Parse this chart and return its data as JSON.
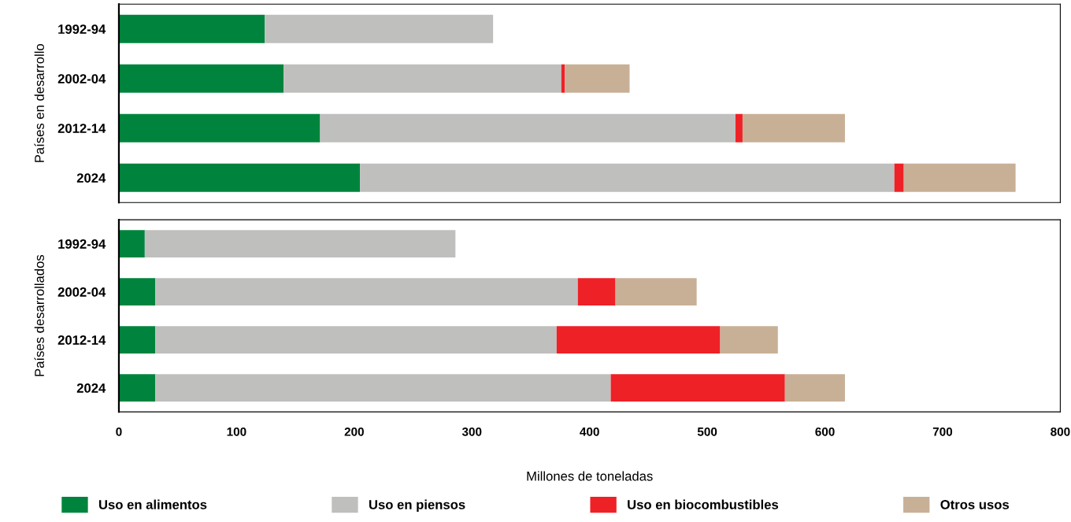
{
  "chart_data": [
    {
      "type": "bar",
      "orientation": "horizontal",
      "stacked": true,
      "ylabel": "Países en desarrollo",
      "categories": [
        "1992-94",
        "2002-04",
        "2012-14",
        "2024"
      ],
      "xlim": [
        0,
        800
      ],
      "tick_labels": "y",
      "grid": false,
      "legend": "bottom",
      "series": [
        {
          "name": "Uso en alimentos",
          "color": "#00843d",
          "values": [
            124,
            140,
            171,
            205
          ]
        },
        {
          "name": "Uso en piensos",
          "color": "#bfbfbe",
          "values": [
            194,
            236,
            353,
            454
          ]
        },
        {
          "name": "Uso en biocombustibles",
          "color": "#ee2127",
          "values": [
            0,
            3,
            6,
            8
          ]
        },
        {
          "name": "Otros usos",
          "color": "#c8b097",
          "values": [
            0,
            55,
            87,
            95
          ]
        }
      ]
    },
    {
      "type": "bar",
      "orientation": "horizontal",
      "stacked": true,
      "ylabel": "Países desarrollados",
      "xlabel": "Millones de toneladas",
      "categories": [
        "1992-94",
        "2002-04",
        "2012-14",
        "2024"
      ],
      "xlim": [
        0,
        800
      ],
      "xticks": [
        0,
        100,
        200,
        300,
        400,
        500,
        600,
        700,
        800
      ],
      "grid": false,
      "series": [
        {
          "color": "#00843d",
          "values": [
            22,
            31,
            31,
            31
          ]
        },
        {
          "color": "#bfbfbe",
          "values": [
            264,
            359,
            341,
            387
          ]
        },
        {
          "color": "#ee2127",
          "values": [
            0,
            32,
            139,
            148
          ]
        },
        {
          "color": "#c8b097",
          "values": [
            0,
            69,
            49,
            51
          ]
        }
      ]
    }
  ]
}
